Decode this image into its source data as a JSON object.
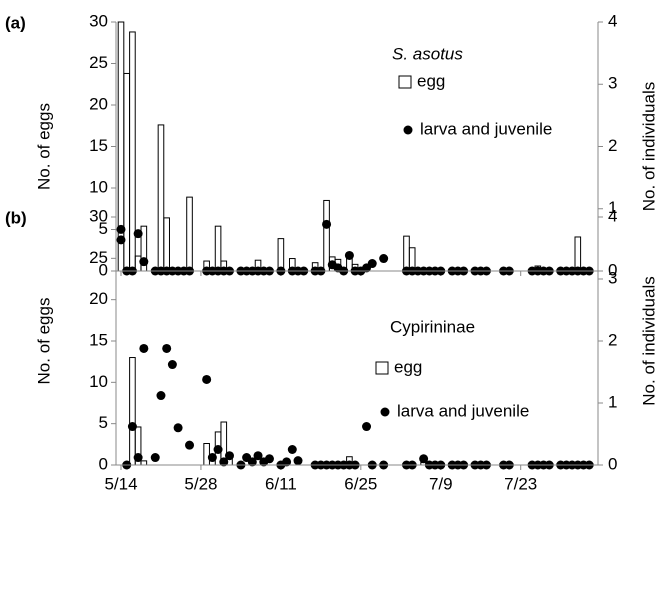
{
  "chart_data": [
    {
      "type": "bar",
      "panel_label": "(a)",
      "annotation": "S. asotus",
      "ylabel": "No. of eggs",
      "y2label": "No. of individuals",
      "categories": [
        null,
        null,
        null,
        null,
        null,
        null,
        null,
        null,
        null,
        null,
        null,
        null,
        null,
        null,
        null,
        null,
        null,
        null,
        null,
        null,
        null,
        null,
        null,
        null,
        null,
        null,
        null,
        null,
        null,
        null,
        null,
        null,
        null,
        null,
        null,
        null,
        null,
        null,
        null,
        null,
        null,
        null,
        null,
        null,
        null,
        null,
        null,
        null,
        null,
        null,
        null,
        null,
        null,
        null,
        null,
        null,
        null,
        null,
        null,
        null,
        null,
        null,
        null,
        null,
        null,
        null,
        null,
        null,
        null,
        null,
        null,
        null,
        null,
        null,
        null,
        null,
        null,
        null,
        null,
        null,
        null,
        null,
        null,
        null
      ],
      "series": [
        {
          "name": "egg",
          "type": "bar",
          "color": "#ffffff",
          "values": [
            30,
            23.8,
            28.8,
            1.8,
            5.4,
            null,
            0,
            17.6,
            6.4,
            0,
            0,
            0,
            8.9,
            null,
            null,
            1.2,
            0,
            5.4,
            1.2,
            0,
            null,
            0,
            0,
            0,
            1.3,
            0,
            0,
            null,
            3.9,
            null,
            1.5,
            0,
            0,
            null,
            1.0,
            0,
            8.5,
            1.7,
            1.4,
            0,
            1.5,
            0.8,
            0,
            0,
            0,
            null,
            0,
            null,
            null,
            null,
            4.2,
            2.8,
            0,
            0,
            0,
            0,
            0,
            null,
            0,
            0,
            0,
            null,
            0,
            0,
            0,
            null,
            null,
            0,
            0,
            null,
            null,
            null,
            0,
            0.6,
            0,
            0,
            null,
            0,
            0,
            0,
            4.1,
            0,
            0,
            null
          ]
        },
        {
          "name": "larva and juvenile",
          "type": "scatter",
          "axis": "y2",
          "color": "#000000",
          "values": [
            0.5,
            0,
            0,
            0.6,
            0.15,
            null,
            0,
            0,
            0,
            0,
            0,
            0,
            0,
            null,
            null,
            0,
            0,
            0,
            0,
            0,
            null,
            0,
            0,
            0,
            0,
            0,
            0,
            null,
            0,
            null,
            0,
            0,
            0,
            null,
            0,
            0,
            0.75,
            0.1,
            0.05,
            0,
            0.25,
            0,
            0,
            0.05,
            0.12,
            null,
            0.2,
            null,
            null,
            null,
            0,
            0,
            0,
            0,
            0,
            0,
            0,
            null,
            0,
            0,
            0,
            null,
            0,
            0,
            0,
            null,
            null,
            0,
            0,
            null,
            null,
            null,
            0,
            0,
            0,
            0,
            null,
            0,
            0,
            0,
            0,
            0,
            0,
            null
          ]
        }
      ],
      "ylim": [
        0,
        30
      ],
      "yticks": [
        0,
        5,
        10,
        15,
        20,
        25,
        30
      ],
      "y2lim": [
        0,
        4
      ],
      "y2ticks": [
        0,
        1,
        2,
        3,
        4
      ]
    },
    {
      "type": "bar",
      "panel_label": "(b)",
      "annotation": "Cypirininae",
      "ylabel": "No. of eggs",
      "y2label": "No. of individuals",
      "categories": [
        "5/14",
        null,
        null,
        null,
        null,
        null,
        null,
        null,
        null,
        null,
        null,
        null,
        null,
        null,
        "5/28",
        null,
        null,
        null,
        null,
        null,
        null,
        null,
        null,
        null,
        null,
        null,
        null,
        null,
        "6/11",
        null,
        null,
        null,
        null,
        null,
        null,
        null,
        null,
        null,
        null,
        null,
        null,
        null,
        "6/25",
        null,
        null,
        null,
        null,
        null,
        null,
        null,
        null,
        null,
        null,
        null,
        null,
        null,
        "7/9",
        null,
        null,
        null,
        null,
        null,
        null,
        null,
        null,
        null,
        null,
        null,
        null,
        null,
        "7/23",
        null,
        null,
        null,
        null,
        null,
        null,
        null,
        null,
        null,
        null,
        null,
        null,
        null
      ],
      "series": [
        {
          "name": "egg",
          "type": "bar",
          "color": "#ffffff",
          "values": [
            0,
            0,
            13,
            4.6,
            0.5,
            null,
            0,
            0,
            0,
            0,
            0,
            null,
            0,
            null,
            null,
            2.6,
            0,
            4.0,
            5.2,
            1.2,
            null,
            0,
            0,
            0,
            1.0,
            0,
            0,
            null,
            0,
            0,
            0,
            0,
            null,
            null,
            0,
            0,
            0,
            0,
            0,
            0,
            1.0,
            0,
            null,
            0,
            0,
            null,
            0,
            null,
            null,
            null,
            0,
            0,
            null,
            0.3,
            0,
            0,
            0,
            null,
            0,
            0,
            0,
            null,
            0,
            0,
            0,
            null,
            null,
            0,
            0,
            null,
            null,
            null,
            0,
            0,
            0,
            0,
            null,
            0,
            0,
            0,
            0,
            0,
            0,
            null
          ]
        },
        {
          "name": "larva and juvenile",
          "type": "scatter",
          "axis": "y2",
          "color": "#000000",
          "values": [
            3.8,
            0,
            0.62,
            0.12,
            1.88,
            null,
            0.12,
            1.12,
            1.88,
            1.62,
            0.6,
            null,
            0.32,
            null,
            null,
            1.38,
            0.12,
            0.25,
            0.05,
            0.15,
            null,
            0,
            0.12,
            0.05,
            0.15,
            0.05,
            0.1,
            null,
            0,
            0.05,
            0.25,
            0.07,
            null,
            null,
            0,
            0,
            0,
            0,
            0,
            0,
            0,
            0,
            null,
            0.62,
            0,
            null,
            0,
            null,
            null,
            null,
            0,
            0,
            null,
            0.1,
            0,
            0,
            0,
            null,
            0,
            0,
            0,
            null,
            0,
            0,
            0,
            null,
            null,
            0,
            0,
            null,
            null,
            null,
            0,
            0,
            0,
            0,
            null,
            0,
            0,
            0,
            0,
            0,
            0,
            null
          ]
        }
      ],
      "ylim": [
        0,
        30
      ],
      "yticks": [
        0,
        5,
        10,
        15,
        20,
        25,
        30
      ],
      "y2lim": [
        0,
        4
      ],
      "y2ticks": [
        0,
        1,
        2,
        3,
        4
      ]
    }
  ]
}
